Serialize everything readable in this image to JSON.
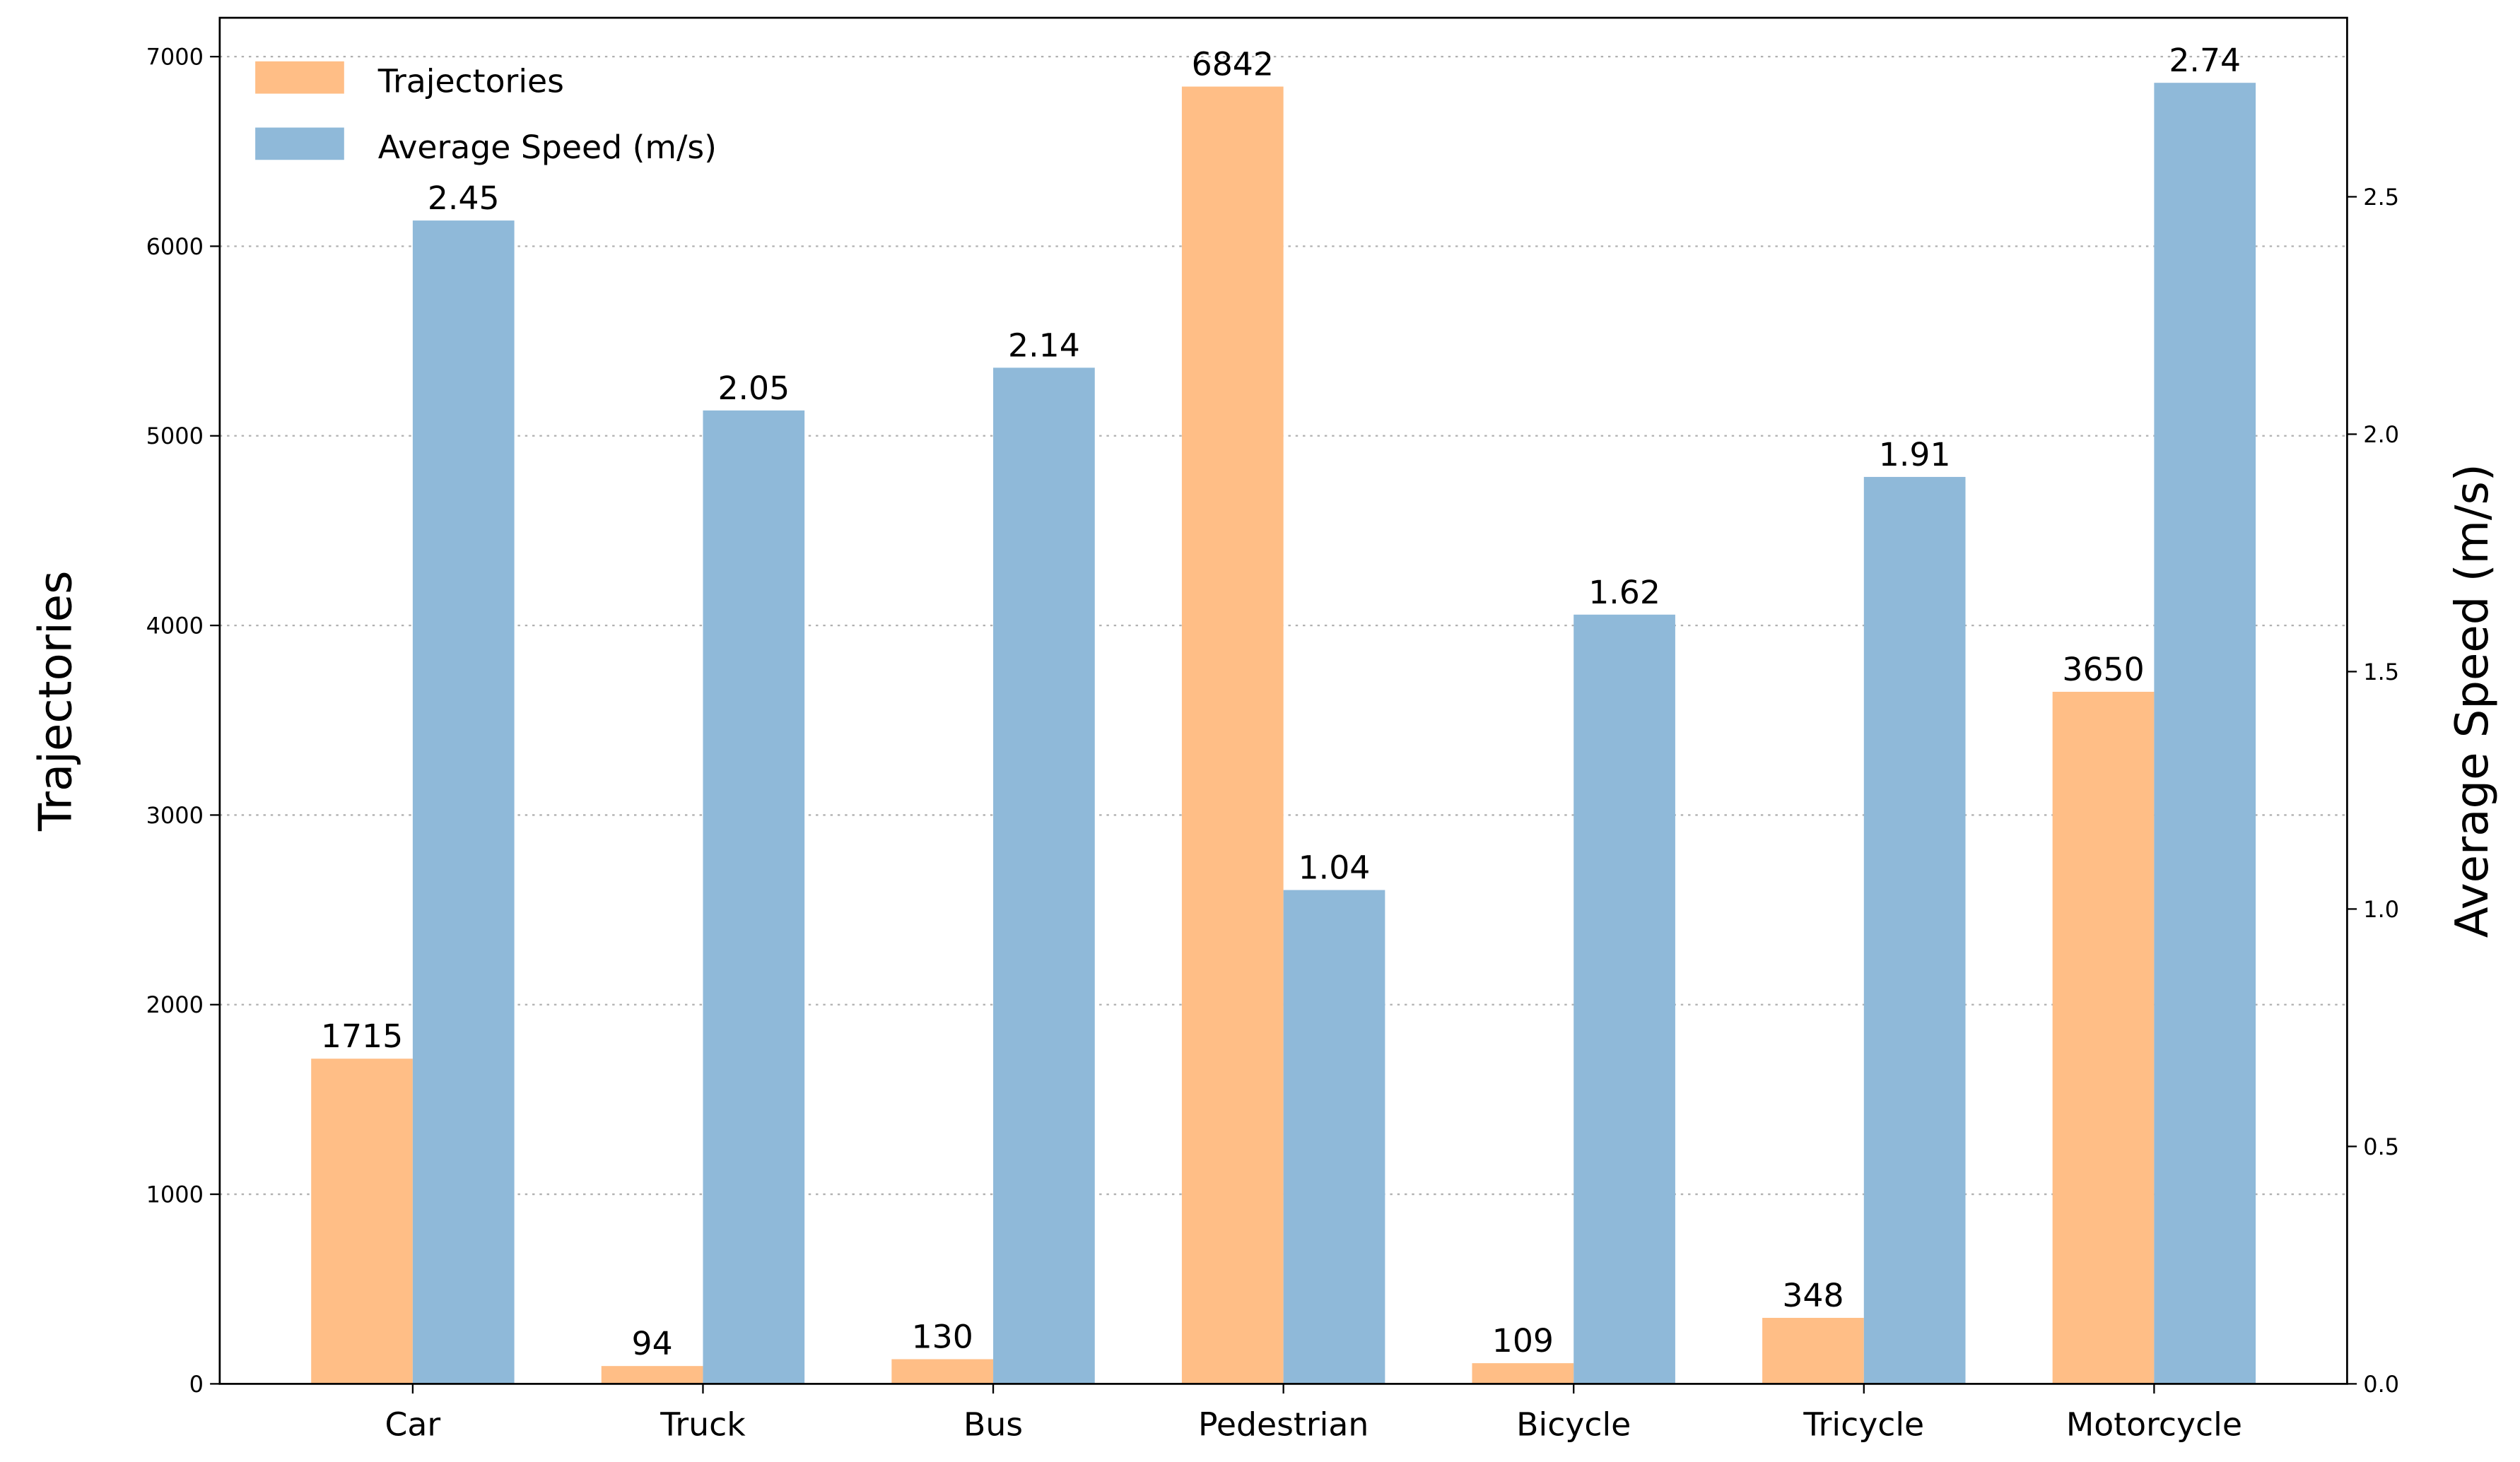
{
  "chart_data": {
    "type": "bar",
    "title": "",
    "xlabel": "",
    "ylabel": "Trajectories",
    "ylabel_right": "Average Speed (m/s)",
    "categories": [
      "Car",
      "Truck",
      "Bus",
      "Pedestrian",
      "Bicycle",
      "Tricycle",
      "Motorcycle"
    ],
    "series": [
      {
        "name": "Trajectories",
        "axis": "left",
        "color": "#ffbe86",
        "values": [
          1715,
          94,
          130,
          6842,
          109,
          348,
          3650
        ],
        "labels": [
          "1715",
          "94",
          "130",
          "6842",
          "109",
          "348",
          "3650"
        ]
      },
      {
        "name": "Average Speed (m/s)",
        "axis": "right",
        "color": "#8fb9d9",
        "values": [
          2.45,
          2.05,
          2.14,
          1.04,
          1.62,
          1.91,
          2.74
        ],
        "labels": [
          "2.45",
          "2.05",
          "2.14",
          "1.04",
          "1.62",
          "1.91",
          "2.74"
        ]
      }
    ],
    "ylim_left": [
      0,
      7205
    ],
    "ylim_right": [
      0,
      2.877
    ],
    "yticks_left": [
      "0",
      "1000",
      "2000",
      "3000",
      "4000",
      "5000",
      "6000",
      "7000"
    ],
    "yticks_right": [
      "0.0",
      "0.5",
      "1.0",
      "1.5",
      "2.0",
      "2.5"
    ],
    "grid": "horizontal dotted (left axis)",
    "legend_placement": "top-left"
  }
}
